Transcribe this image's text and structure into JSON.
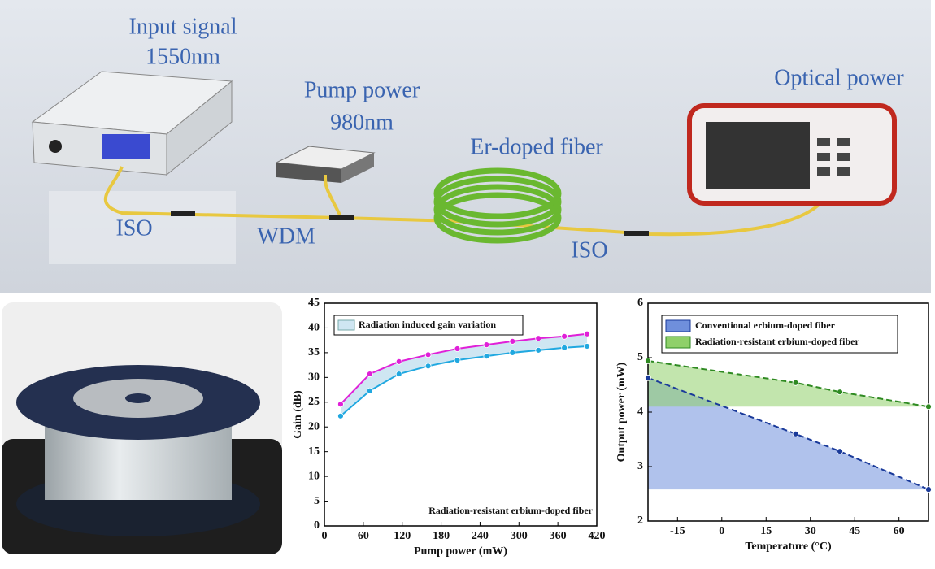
{
  "diagram": {
    "labels": [
      "Input signal",
      "1550nm",
      "Pump power",
      "980nm",
      "Er-doped fiber",
      "Optical power",
      "ISO",
      "WDM",
      "ISO"
    ]
  },
  "chart_data": [
    {
      "type": "line",
      "xlabel": "Pump power (mW)",
      "ylabel": "Gain (dB)",
      "band_label": "Radiation induced gain variation",
      "band_color": "#cfe6f2",
      "annotation": "Radiation-resistant erbium-doped fiber",
      "x": [
        25,
        70,
        115,
        160,
        205,
        250,
        290,
        330,
        370,
        405
      ],
      "series": [
        {
          "color": "#e020d8",
          "values": [
            24.6,
            30.7,
            33.2,
            34.6,
            35.8,
            36.6,
            37.3,
            37.9,
            38.3,
            38.8
          ]
        },
        {
          "color": "#20a8e0",
          "values": [
            22.2,
            27.3,
            30.7,
            32.3,
            33.5,
            34.3,
            35.0,
            35.5,
            36.0,
            36.3
          ]
        }
      ],
      "xlim": [
        0,
        420
      ],
      "xticks": [
        0,
        60,
        120,
        180,
        240,
        300,
        360,
        420
      ],
      "ylim": [
        0,
        45
      ],
      "yticks": [
        0,
        5,
        10,
        15,
        20,
        25,
        30,
        35,
        40,
        45
      ]
    },
    {
      "type": "line",
      "xlabel": "Temperature (°C)",
      "ylabel": "Output power (mW)",
      "dashed": true,
      "x": [
        -25,
        25,
        40,
        70
      ],
      "series": [
        {
          "name": "Conventional erbium-doped fiber",
          "color": "#1a3a9a",
          "fill_color": "#6f8fdc",
          "values": [
            4.63,
            3.6,
            3.28,
            2.58
          ]
        },
        {
          "name": "Radiation-resistant erbium-doped fiber",
          "color": "#2f8a22",
          "fill_color": "#8fd06a",
          "values": [
            4.94,
            4.54,
            4.37,
            4.1
          ]
        }
      ],
      "xlim": [
        -25,
        70
      ],
      "xticks": [
        -15,
        0,
        15,
        30,
        45,
        60
      ],
      "ylim": [
        2,
        6
      ],
      "yticks": [
        2,
        3,
        4,
        5,
        6
      ]
    }
  ]
}
